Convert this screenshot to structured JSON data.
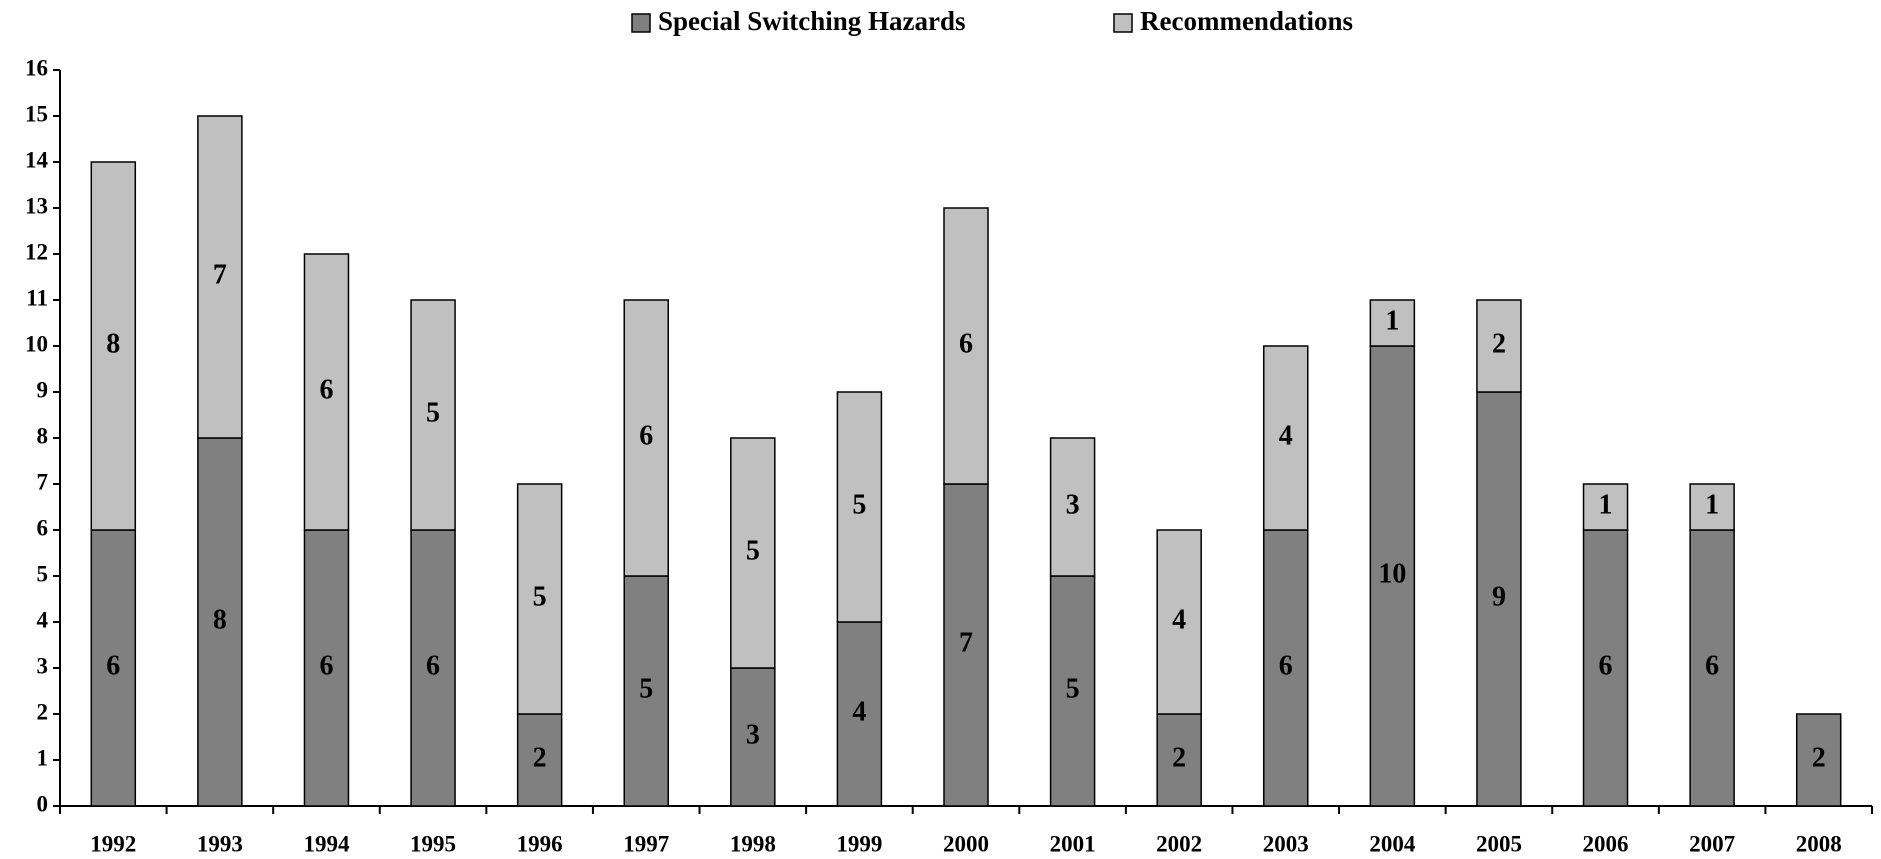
{
  "chart_data": {
    "type": "stacked-bar",
    "categories": [
      "1992",
      "1993",
      "1994",
      "1995",
      "1996",
      "1997",
      "1998",
      "1999",
      "2000",
      "2001",
      "2002",
      "2003",
      "2004",
      "2005",
      "2006",
      "2007",
      "2008"
    ],
    "series": [
      {
        "name": "Special Switching Hazards",
        "color": "#808080",
        "values": [
          6,
          8,
          6,
          6,
          2,
          5,
          3,
          4,
          7,
          5,
          2,
          6,
          10,
          9,
          6,
          6,
          2
        ]
      },
      {
        "name": "Recommendations",
        "color": "#c0c0c0",
        "values": [
          8,
          7,
          6,
          5,
          5,
          6,
          5,
          5,
          6,
          3,
          4,
          4,
          1,
          2,
          1,
          1,
          null
        ]
      }
    ],
    "ylim": [
      0,
      16
    ],
    "yticks": [
      0,
      1,
      2,
      3,
      4,
      5,
      6,
      7,
      8,
      9,
      10,
      11,
      12,
      13,
      14,
      15,
      16
    ],
    "grid": false,
    "legend": "top"
  }
}
